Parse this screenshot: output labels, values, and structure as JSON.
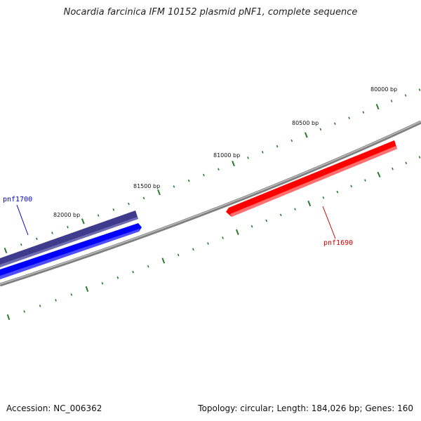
{
  "title": "Nocardia farcinica IFM 10152 plasmid pNF1, complete sequence",
  "accession": "Accession: NC_006362",
  "summary": "Topology: circular; Length: 184,026 bp; Genes: 160",
  "ticks": [
    {
      "label": "80000 bp"
    },
    {
      "label": "80500 bp"
    },
    {
      "label": "81000 bp"
    },
    {
      "label": "81500 bp"
    },
    {
      "label": "82000 bp"
    }
  ],
  "genes": [
    {
      "name": "pnf1700",
      "strand": "reverse",
      "color": "#0000ee"
    },
    {
      "name": "pnf1690",
      "strand": "forward",
      "color": "#ee0000"
    }
  ],
  "colors": {
    "backbone": "#888888",
    "tick": "#2a7a2a",
    "reverse_gene": "#0000ff",
    "reverse_gene_shadow": "#3d3a8a",
    "forward_gene": "#ff0000"
  }
}
